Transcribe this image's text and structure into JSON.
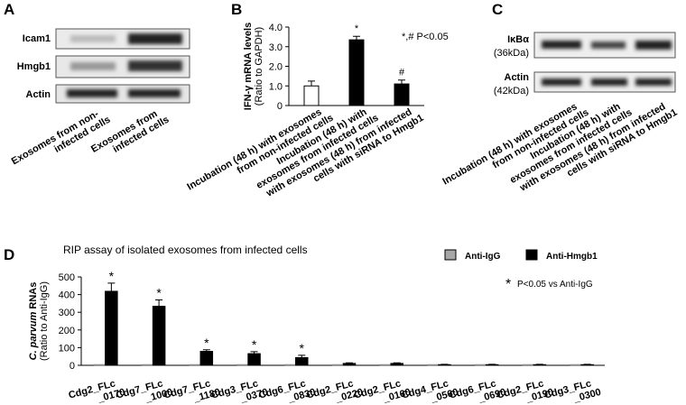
{
  "panels": {
    "a": "A",
    "b": "B",
    "c": "C",
    "d": "D"
  },
  "blot_a": {
    "rows": [
      "Icam1",
      "Hmgb1",
      "Actin"
    ],
    "lanes": [
      [
        "Exosomes from non-",
        "infected cells"
      ],
      [
        "Exosomes from",
        "infected cells"
      ]
    ]
  },
  "blot_c": {
    "rows": [
      [
        "IκBα",
        "(36kDa)"
      ],
      [
        "Actin",
        "(42kDa)"
      ]
    ],
    "lanes": [
      [
        "Incubation (48 h) with exosomes",
        "from non-infected cells"
      ],
      [
        "Incubation (48 h) with",
        "exosomes from infected cells"
      ],
      [
        "with exosomes (48 h) from infected",
        "cells with siRNA to Hmgb1"
      ]
    ]
  },
  "chart_data": [
    {
      "type": "bar",
      "y_label": "IFN-γ mRNA levels",
      "y_label_sub": "(Ratio to GAPDH)",
      "categories": [
        [
          "Incubation (48 h) with exosomes",
          "from non-infected cells"
        ],
        [
          "Incubation (48 h) with",
          "exosomes from infected cells"
        ],
        [
          "with exosomes (48 h) from infected",
          "cells with siRNA to Hmgb1"
        ]
      ],
      "values": [
        1.0,
        3.35,
        1.1
      ],
      "errors": [
        0.25,
        0.18,
        0.2
      ],
      "colors": [
        "#ffffff",
        "#000000",
        "#000000"
      ],
      "annotations": [
        null,
        "*",
        "#"
      ],
      "note": "*,# P<0.05",
      "ylim": [
        0,
        4
      ],
      "yticks": [
        0,
        {
          "value": 1,
          "label": "1.0"
        },
        {
          "value": 2,
          "label": "2.0"
        },
        {
          "value": 3,
          "label": "3.0"
        },
        {
          "value": 4,
          "label": "4.0"
        }
      ]
    },
    {
      "type": "grouped_bar",
      "title": "RIP assay of isolated exosomes from infected cells",
      "y_label_italic": "C. parvum",
      "y_label": "RNAs",
      "y_label_sub": "(Ratio to Anti-IgG)",
      "categories": [
        [
          "Cdg2_FLc",
          "_0170"
        ],
        [
          "Cdg7_FLc",
          "_1000"
        ],
        [
          "Cdg7_FLc",
          "_1180"
        ],
        [
          "Cdg3_FLc",
          "_0370"
        ],
        [
          "Cdg6_FLc",
          "_0830"
        ],
        [
          "Cdg2_FLc",
          "_0220"
        ],
        [
          "Cdg2_FLc",
          "_0160"
        ],
        [
          "Cdg4_FLc",
          "_0560"
        ],
        [
          "Cdg6_FLc",
          "_0690"
        ],
        [
          "Cdg2_FLc",
          "_0190"
        ],
        [
          "Cdg3_FLc",
          "_0300"
        ]
      ],
      "series": [
        {
          "name": "Anti-IgG",
          "color": "#a6a6a6",
          "values": [
            5,
            5,
            5,
            5,
            5,
            5,
            5,
            5,
            5,
            5,
            5
          ]
        },
        {
          "name": "Anti-Hmgb1",
          "color": "#000000",
          "values": [
            420,
            335,
            80,
            67,
            45,
            12,
            12,
            5,
            5,
            5,
            5
          ],
          "errors": [
            45,
            35,
            8,
            10,
            12,
            2,
            2,
            1,
            1,
            1,
            1
          ]
        }
      ],
      "annotations": [
        "*",
        "*",
        "*",
        "*",
        "*",
        null,
        null,
        null,
        null,
        null,
        null
      ],
      "note_symbol": "*",
      "note": "P<0.05 vs Anti-IgG",
      "ylim": [
        0,
        500
      ],
      "yticks": [
        0,
        100,
        200,
        300,
        400,
        500
      ]
    }
  ]
}
